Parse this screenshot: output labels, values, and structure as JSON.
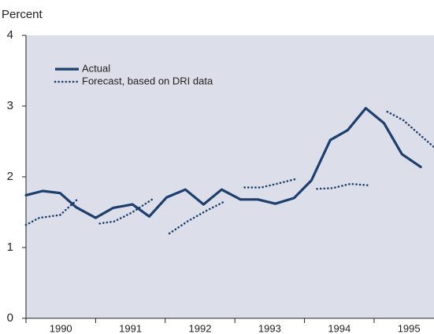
{
  "chart_data": {
    "type": "line",
    "y_axis_label": "Percent",
    "xlim": [
      1990,
      1995.86
    ],
    "xticks": [
      {
        "value": 1990.5,
        "label": "1990"
      },
      {
        "value": 1991.5,
        "label": "1991"
      },
      {
        "value": 1992.5,
        "label": "1992"
      },
      {
        "value": 1993.5,
        "label": "1993"
      },
      {
        "value": 1994.5,
        "label": "1994"
      },
      {
        "value": 1995.5,
        "label": "1995"
      }
    ],
    "ylim": [
      0,
      4
    ],
    "yticks": [
      0,
      1,
      2,
      3,
      4
    ],
    "legend": "upper left",
    "series": [
      {
        "name": "Actual",
        "color": "#1d3f6e",
        "style": "solid",
        "x": [
          1990.0,
          1990.24,
          1990.49,
          1990.72,
          1991.0,
          1991.25,
          1991.53,
          1991.77,
          1992.02,
          1992.29,
          1992.55,
          1992.81,
          1993.08,
          1993.33,
          1993.58,
          1993.85,
          1994.1,
          1994.37,
          1994.62,
          1994.88,
          1995.14,
          1995.4,
          1995.67
        ],
        "values": [
          1.74,
          1.8,
          1.77,
          1.57,
          1.42,
          1.56,
          1.61,
          1.44,
          1.71,
          1.82,
          1.61,
          1.82,
          1.68,
          1.68,
          1.62,
          1.7,
          1.95,
          2.52,
          2.66,
          2.97,
          2.76,
          2.32,
          2.14
        ]
      },
      {
        "name": "Forecast, based on DRI data",
        "color": "#1d3f6e",
        "style": "dotted",
        "x": [
          1990.0,
          1990.19,
          1990.49,
          1990.76,
          null,
          1991.06,
          1991.27,
          1991.53,
          1991.81,
          null,
          1992.06,
          1992.32,
          1992.59,
          1992.85,
          null,
          1993.14,
          1993.38,
          1993.64,
          1993.88,
          null,
          1994.18,
          1994.4,
          1994.66,
          1994.92,
          null,
          1995.19,
          1995.42,
          1995.65,
          1995.86
        ],
        "values": [
          1.32,
          1.42,
          1.46,
          1.7,
          null,
          1.34,
          1.37,
          1.5,
          1.68,
          null,
          1.2,
          1.37,
          1.52,
          1.65,
          null,
          1.85,
          1.85,
          1.91,
          1.97,
          null,
          1.83,
          1.84,
          1.9,
          1.88,
          null,
          2.92,
          2.8,
          2.6,
          2.42
        ]
      }
    ]
  }
}
